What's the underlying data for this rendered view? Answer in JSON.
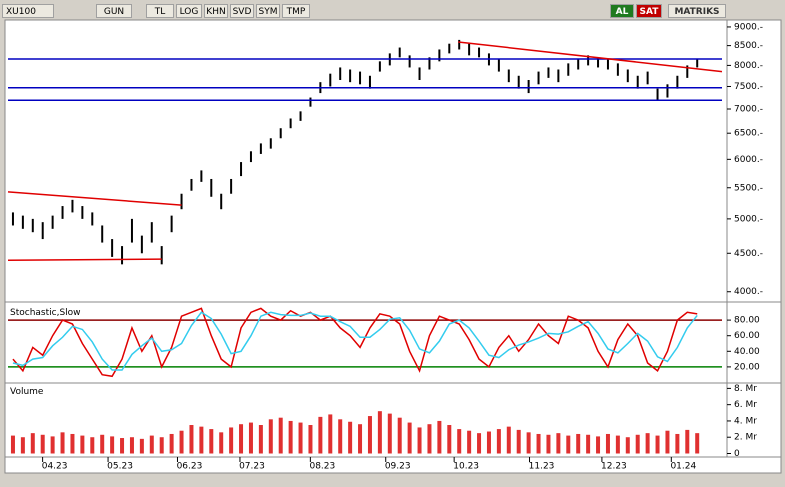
{
  "toolbar": {
    "symbol": "XU100",
    "buttons": [
      "GUN",
      "TL",
      "LOG",
      "KHN",
      "SVD",
      "SYM",
      "TMP"
    ],
    "buy": "AL",
    "sell": "SAT",
    "brand": "MATRIKS"
  },
  "chart_data": [
    {
      "type": "range",
      "log_scale": true,
      "xlim": [
        0,
        72
      ],
      "ylim": [
        3900,
        9250
      ],
      "yticks": [
        {
          "value": 9000,
          "label": "9000.-"
        },
        {
          "value": 8500,
          "label": "8500.-"
        },
        {
          "value": 8000,
          "label": "8000.-"
        },
        {
          "value": 7500,
          "label": "7500.-"
        },
        {
          "value": 7000,
          "label": "7000.-"
        },
        {
          "value": 6500,
          "label": "6500.-"
        },
        {
          "value": 6000,
          "label": "6000.-"
        },
        {
          "value": 5500,
          "label": "5500.-"
        },
        {
          "value": 5000,
          "label": "5000.-"
        },
        {
          "value": 4500,
          "label": "4500.-"
        },
        {
          "value": 4000,
          "label": "4000.-"
        }
      ],
      "xticks": [
        {
          "value": 4.7,
          "label": "04.23"
        },
        {
          "value": 11.3,
          "label": "05.23"
        },
        {
          "value": 18.3,
          "label": "06.23"
        },
        {
          "value": 24.6,
          "label": "07.23"
        },
        {
          "value": 31.7,
          "label": "08.23"
        },
        {
          "value": 39.3,
          "label": "09.23"
        },
        {
          "value": 46.2,
          "label": "10.23"
        },
        {
          "value": 53.8,
          "label": "11.23"
        },
        {
          "value": 61.1,
          "label": "12.23"
        },
        {
          "value": 68.1,
          "label": "01.24"
        }
      ],
      "color": "#000000",
      "high": [
        5100,
        5050,
        5000,
        4950,
        5050,
        5200,
        5300,
        5200,
        5100,
        4900,
        4700,
        4600,
        5000,
        4750,
        4950,
        4600,
        5050,
        5400,
        5650,
        5800,
        5650,
        5400,
        5650,
        5950,
        6150,
        6300,
        6400,
        6600,
        6800,
        6950,
        7250,
        7600,
        7800,
        7950,
        7900,
        7850,
        7750,
        8100,
        8300,
        8450,
        8250,
        7950,
        8200,
        8400,
        8550,
        8650,
        8550,
        8450,
        8300,
        8150,
        7900,
        7750,
        7650,
        7850,
        7950,
        7900,
        8050,
        8150,
        8250,
        8200,
        8150,
        8050,
        7900,
        7750,
        7850,
        7450,
        7550,
        7750,
        8000,
        8150
      ],
      "low": [
        4900,
        4850,
        4800,
        4700,
        4850,
        5000,
        5100,
        5000,
        4900,
        4650,
        4450,
        4350,
        4650,
        4500,
        4650,
        4350,
        4800,
        5150,
        5450,
        5600,
        5350,
        5150,
        5400,
        5700,
        5950,
        6100,
        6200,
        6400,
        6600,
        6750,
        7050,
        7350,
        7500,
        7650,
        7600,
        7550,
        7450,
        7850,
        8000,
        8200,
        7950,
        7650,
        7900,
        8100,
        8300,
        8400,
        8250,
        8200,
        8000,
        7850,
        7600,
        7450,
        7350,
        7550,
        7700,
        7600,
        7750,
        7900,
        8000,
        7950,
        7900,
        7750,
        7600,
        7450,
        7550,
        7200,
        7250,
        7450,
        7700,
        7950
      ],
      "hlines": {
        "color": "#0000c0",
        "values": [
          8160,
          7470,
          7190
        ]
      },
      "trendlines": {
        "color": "#e00000",
        "lines": [
          {
            "x": [
              0,
              17.5
            ],
            "y": [
              5430,
              5215
            ]
          },
          {
            "x": [
              0,
              15.5
            ],
            "y": [
              4405,
              4420
            ]
          },
          {
            "x": [
              45.4,
              72
            ],
            "y": [
              8595,
              7850
            ]
          }
        ]
      }
    },
    {
      "type": "line",
      "title": "Stochastic,Slow",
      "xlim": [
        0,
        72
      ],
      "ylim": [
        0,
        100
      ],
      "yticks": [
        {
          "value": 80,
          "label": "80.00"
        },
        {
          "value": 60,
          "label": "60.00"
        },
        {
          "value": 40,
          "label": "40.00"
        },
        {
          "value": 20,
          "label": "20.00"
        }
      ],
      "levels": [
        {
          "value": 80,
          "color": "#8b0000"
        },
        {
          "value": 20,
          "color": "#008000"
        }
      ],
      "series": [
        {
          "color": "#e00000",
          "values": [
            30,
            15,
            45,
            35,
            60,
            80,
            75,
            50,
            30,
            10,
            8,
            30,
            70,
            40,
            60,
            20,
            45,
            85,
            90,
            95,
            60,
            30,
            20,
            70,
            90,
            95,
            85,
            80,
            92,
            85,
            90,
            80,
            85,
            70,
            60,
            45,
            70,
            88,
            85,
            75,
            40,
            15,
            60,
            85,
            80,
            75,
            55,
            30,
            20,
            45,
            60,
            40,
            55,
            75,
            60,
            50,
            85,
            80,
            70,
            40,
            20,
            55,
            75,
            60,
            25,
            15,
            40,
            80,
            90,
            88
          ]
        },
        {
          "color": "#33ccee",
          "values": [
            25,
            22,
            30,
            32,
            47,
            58,
            72,
            68,
            52,
            30,
            16,
            16,
            36,
            47,
            57,
            40,
            42,
            50,
            73,
            90,
            82,
            62,
            37,
            40,
            60,
            85,
            90,
            87,
            86,
            86,
            89,
            85,
            85,
            78,
            72,
            58,
            58,
            68,
            81,
            83,
            67,
            43,
            38,
            53,
            75,
            80,
            70,
            53,
            35,
            32,
            42,
            48,
            52,
            57,
            63,
            62,
            65,
            72,
            78,
            63,
            43,
            38,
            50,
            63,
            53,
            33,
            27,
            45,
            70,
            86
          ]
        }
      ]
    },
    {
      "type": "bar",
      "title": "Volume",
      "xlim": [
        0,
        72
      ],
      "ylim": [
        0,
        8.6
      ],
      "color": "#e03030",
      "yticks": [
        {
          "value": 8,
          "label": "8. Mr"
        },
        {
          "value": 6,
          "label": "6. Mr"
        },
        {
          "value": 4,
          "label": "4. Mr"
        },
        {
          "value": 2,
          "label": "2. Mr"
        },
        0
      ],
      "values": [
        2.2,
        2.0,
        2.5,
        2.3,
        2.1,
        2.6,
        2.4,
        2.2,
        2.0,
        2.3,
        2.1,
        1.9,
        2.0,
        1.8,
        2.2,
        2.0,
        2.4,
        2.8,
        3.5,
        3.3,
        3.0,
        2.6,
        3.2,
        3.6,
        3.8,
        3.5,
        4.2,
        4.4,
        4.0,
        3.8,
        3.5,
        4.5,
        4.8,
        4.2,
        3.9,
        3.6,
        4.6,
        5.2,
        4.9,
        4.4,
        3.8,
        3.2,
        3.6,
        4.0,
        3.5,
        3.0,
        2.8,
        2.5,
        2.7,
        3.0,
        3.3,
        2.9,
        2.6,
        2.4,
        2.3,
        2.5,
        2.2,
        2.4,
        2.3,
        2.1,
        2.4,
        2.2,
        2.0,
        2.3,
        2.5,
        2.2,
        2.8,
        2.4,
        2.9,
        2.5
      ]
    }
  ]
}
